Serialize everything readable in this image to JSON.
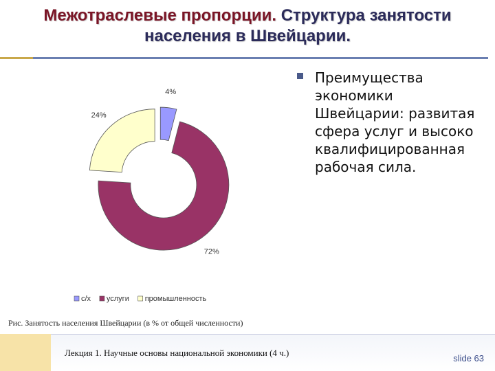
{
  "slide": {
    "title_part1": "Межотраслевые пропорции.",
    "title_part2": " Структура занятости",
    "title_line2": "населения в Швейцарии.",
    "bullet": "Преимущества экономики Швейцарии: развитая сфера услуг и высоко квалифицированная рабочая сила.",
    "caption": "Рис. Занятость населения Швейцарии (в % от общей численности)",
    "footer": "Лекция 1. Научные основы национальной экономики (4 ч.)",
    "slide_number": "slide 63"
  },
  "colors": {
    "accent_title": "#7a1526",
    "bullet": "#4a5a8a",
    "rule": "#6a7fb1"
  },
  "chart_data": {
    "type": "pie",
    "style": "exploded-donut",
    "categories": [
      "с/х",
      "услуги",
      "промышленность"
    ],
    "values": [
      4,
      72,
      24
    ],
    "value_labels": [
      "4%",
      "72%",
      "24%"
    ],
    "colors": [
      "#9999ff",
      "#993366",
      "#ffffcc"
    ],
    "legend_position": "bottom"
  }
}
